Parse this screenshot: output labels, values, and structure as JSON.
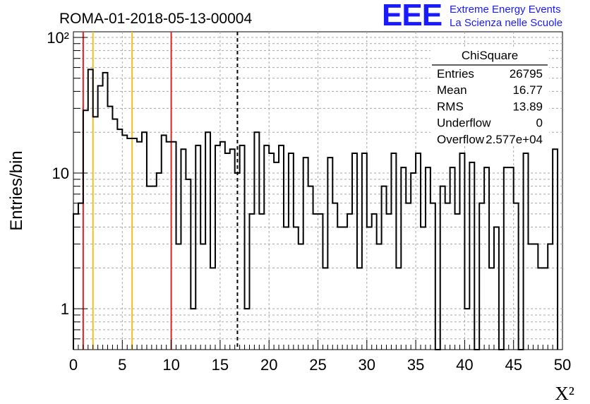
{
  "chart_data": {
    "type": "histogram",
    "title": "ROMA-01-2018-05-13-00004",
    "xlabel": "X²",
    "ylabel": "Entries/bin",
    "xlim": [
      0,
      50
    ],
    "ylim": [
      0.5,
      110
    ],
    "log_y": true,
    "grid": true,
    "bin_width": 0.5,
    "bin_start": 0,
    "xticks": [
      "0",
      "5",
      "10",
      "15",
      "20",
      "25",
      "30",
      "35",
      "40",
      "45",
      "50"
    ],
    "yticks": [
      {
        "value": 1,
        "label": "1"
      },
      {
        "value": 10,
        "label": "10"
      },
      {
        "value": 100,
        "label": "10²"
      }
    ],
    "values": [
      5,
      6,
      29,
      58,
      26,
      44,
      55,
      31,
      25,
      21,
      19,
      18,
      18,
      17,
      20,
      8,
      8,
      10,
      19,
      17,
      17,
      3,
      15,
      9,
      1,
      16,
      3,
      20,
      2,
      16,
      17,
      14,
      15,
      10,
      16,
      1,
      5,
      20,
      5,
      16,
      14,
      12,
      16,
      4,
      14,
      4,
      3,
      13,
      8,
      5,
      5,
      2,
      13,
      6,
      4,
      4,
      5,
      14,
      2,
      14,
      4,
      5,
      3,
      8,
      5,
      14,
      2,
      11,
      6,
      10,
      14,
      4,
      11,
      6,
      0,
      8,
      6,
      11,
      5,
      14,
      1,
      12,
      0,
      6,
      11,
      2,
      4,
      0,
      11,
      11,
      6,
      0,
      14,
      3,
      3,
      2,
      2,
      3,
      15
    ],
    "vertical_lines": [
      {
        "x": 1,
        "color": "#e02020",
        "style": "solid"
      },
      {
        "x": 2,
        "color": "#f0c020",
        "style": "solid"
      },
      {
        "x": 6,
        "color": "#f0c020",
        "style": "solid"
      },
      {
        "x": 10,
        "color": "#e02020",
        "style": "solid"
      },
      {
        "x": 16.77,
        "color": "#000000",
        "style": "dashed"
      }
    ],
    "stats_box": {
      "name": "ChiSquare",
      "rows": [
        {
          "label": "Entries",
          "value": "26795"
        },
        {
          "label": "Mean",
          "value": "16.77"
        },
        {
          "label": "RMS",
          "value": "13.89"
        },
        {
          "label": "Underflow",
          "value": "0"
        },
        {
          "label": "Overflow",
          "value": "2.577e+04"
        }
      ]
    }
  },
  "logo": {
    "letters": "EEE",
    "line1": "Extreme Energy Events",
    "line2": "La Scienza nelle Scuole",
    "color": "#1a1aff"
  }
}
